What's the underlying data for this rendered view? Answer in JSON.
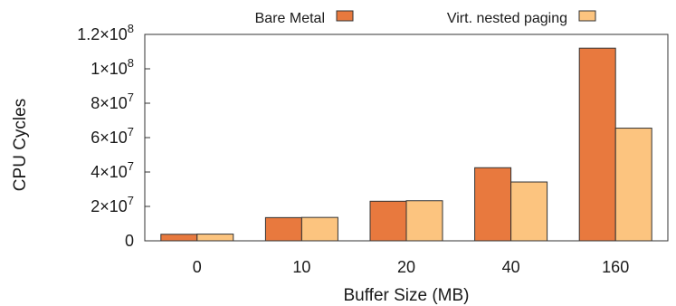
{
  "chart_data": {
    "type": "bar",
    "title": "",
    "xlabel": "Buffer Size (MB)",
    "ylabel": "CPU Cycles",
    "categories": [
      "0",
      "10",
      "20",
      "40",
      "160"
    ],
    "series": [
      {
        "name": "Bare Metal",
        "color": "#e8793e",
        "values": [
          3800000,
          13500000,
          23000000,
          42500000,
          112000000
        ]
      },
      {
        "name": "Virt. nested paging",
        "color": "#fcc47f",
        "values": [
          3900000,
          13600000,
          23300000,
          34200000,
          65500000
        ]
      }
    ],
    "ylim": [
      0,
      120000000
    ],
    "yticks": [
      {
        "value": 0,
        "mantissa": "0",
        "exponent": ""
      },
      {
        "value": 20000000,
        "mantissa": "2×10",
        "exponent": "7"
      },
      {
        "value": 40000000,
        "mantissa": "4×10",
        "exponent": "7"
      },
      {
        "value": 60000000,
        "mantissa": "6×10",
        "exponent": "7"
      },
      {
        "value": 80000000,
        "mantissa": "8×10",
        "exponent": "7"
      },
      {
        "value": 100000000,
        "mantissa": "1×10",
        "exponent": "8"
      },
      {
        "value": 120000000,
        "mantissa": "1.2×10",
        "exponent": "8"
      }
    ],
    "legend_position": "top",
    "grid": false
  }
}
